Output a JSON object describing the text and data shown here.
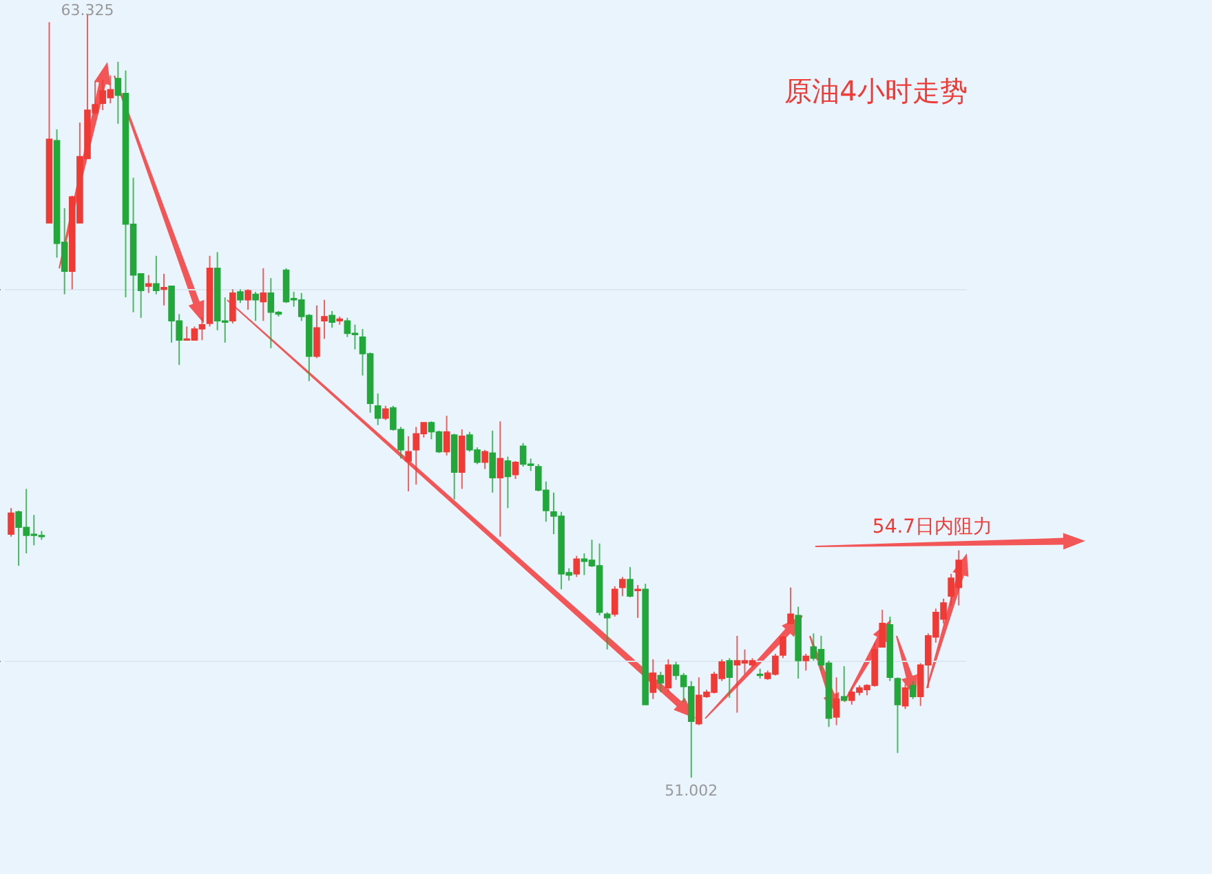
{
  "chart_data": {
    "type": "candlestick",
    "title": "原油4小时走势",
    "categories": [
      null,
      null,
      null,
      null,
      null,
      null,
      null,
      null,
      null,
      null,
      null,
      null,
      null,
      null,
      null,
      null,
      null,
      null,
      null,
      null,
      null,
      null,
      null,
      null,
      null,
      null,
      null,
      null,
      null,
      null,
      null,
      null,
      null,
      null,
      null,
      null,
      null,
      null,
      null,
      null,
      null,
      null,
      null,
      null,
      null,
      null,
      null,
      null,
      null,
      null,
      null,
      null,
      null,
      null,
      null,
      null,
      null,
      null,
      null,
      null,
      null,
      null,
      null,
      null,
      null,
      null,
      null,
      null,
      null,
      null,
      null,
      null,
      null,
      null,
      null,
      null,
      null,
      null,
      null,
      null,
      null,
      null,
      null,
      null,
      null,
      null,
      null,
      null,
      null,
      null,
      null,
      null,
      null,
      null,
      null,
      null,
      null,
      null,
      null,
      null,
      null,
      null,
      null,
      null,
      null,
      null,
      null,
      null,
      null,
      null,
      null,
      null,
      null,
      null,
      null,
      null,
      null,
      null,
      null,
      null,
      null,
      null,
      null,
      null,
      null
    ],
    "ohlc": [
      [
        54.93,
        55.35,
        54.89,
        55.27
      ],
      [
        55.29,
        55.31,
        54.42,
        55.04
      ],
      [
        55.04,
        55.66,
        54.62,
        54.91
      ],
      [
        54.93,
        55.24,
        54.75,
        54.91
      ],
      [
        54.91,
        54.98,
        54.84,
        54.89
      ],
      [
        59.95,
        63.19,
        59.95,
        61.3
      ],
      [
        61.28,
        61.46,
        59.39,
        59.62
      ],
      [
        59.64,
        60.19,
        58.8,
        59.17
      ],
      [
        59.17,
        60.39,
        58.88,
        60.37
      ],
      [
        59.95,
        61.57,
        59.95,
        61.02
      ],
      [
        60.99,
        63.325,
        60.99,
        61.77
      ],
      [
        61.73,
        62.24,
        61.7,
        61.86
      ],
      [
        61.88,
        62.26,
        61.77,
        62.08
      ],
      [
        61.97,
        62.33,
        61.88,
        62.1
      ],
      [
        62.28,
        62.55,
        61.55,
        62.01
      ],
      [
        62.04,
        62.41,
        58.75,
        59.93
      ],
      [
        59.93,
        60.68,
        58.51,
        59.11
      ],
      [
        59.13,
        59.13,
        58.42,
        58.86
      ],
      [
        58.93,
        59.11,
        58.82,
        58.97
      ],
      [
        58.97,
        59.42,
        58.8,
        58.86
      ],
      [
        58.88,
        59.13,
        58.62,
        58.91
      ],
      [
        58.93,
        58.93,
        58.02,
        58.37
      ],
      [
        58.37,
        58.48,
        57.66,
        58.06
      ],
      [
        58.06,
        58.28,
        58.06,
        58.08
      ],
      [
        58.06,
        58.28,
        58.06,
        58.24
      ],
      [
        58.24,
        58.44,
        58.06,
        58.31
      ],
      [
        58.33,
        59.42,
        58.28,
        59.22
      ],
      [
        59.22,
        59.48,
        58.22,
        58.37
      ],
      [
        58.37,
        58.75,
        58.02,
        58.35
      ],
      [
        58.37,
        58.88,
        58.33,
        58.82
      ],
      [
        58.84,
        58.88,
        58.66,
        58.71
      ],
      [
        58.71,
        58.88,
        58.55,
        58.86
      ],
      [
        58.8,
        58.84,
        58.37,
        58.71
      ],
      [
        58.68,
        59.22,
        58.37,
        58.82
      ],
      [
        58.82,
        59.06,
        57.93,
        58.51
      ],
      [
        58.51,
        58.53,
        58.44,
        58.48
      ],
      [
        59.19,
        59.22,
        58.66,
        58.68
      ],
      [
        58.73,
        58.84,
        58.6,
        58.71
      ],
      [
        58.71,
        58.82,
        58.37,
        58.44
      ],
      [
        58.46,
        58.48,
        57.4,
        57.8
      ],
      [
        57.8,
        58.62,
        57.77,
        58.26
      ],
      [
        58.37,
        58.71,
        58.08,
        58.44
      ],
      [
        58.46,
        58.53,
        58.26,
        58.35
      ],
      [
        58.37,
        58.44,
        58.31,
        58.4
      ],
      [
        58.37,
        58.42,
        58.11,
        58.17
      ],
      [
        58.17,
        58.31,
        57.91,
        58.15
      ],
      [
        58.11,
        58.24,
        57.49,
        57.84
      ],
      [
        57.84,
        57.86,
        56.89,
        57.04
      ],
      [
        57.0,
        57.2,
        56.69,
        56.8
      ],
      [
        56.8,
        57.0,
        56.77,
        56.95
      ],
      [
        56.97,
        57.0,
        56.6,
        56.62
      ],
      [
        56.62,
        56.66,
        56.15,
        56.29
      ],
      [
        56.11,
        56.51,
        55.62,
        56.26
      ],
      [
        56.29,
        56.66,
        55.73,
        56.55
      ],
      [
        56.55,
        56.73,
        56.49,
        56.73
      ],
      [
        56.73,
        56.75,
        56.46,
        56.58
      ],
      [
        56.58,
        56.6,
        56.24,
        56.26
      ],
      [
        56.26,
        56.84,
        56.2,
        56.58
      ],
      [
        56.53,
        56.55,
        55.49,
        55.93
      ],
      [
        55.93,
        56.62,
        55.66,
        56.51
      ],
      [
        56.53,
        56.58,
        56.26,
        56.29
      ],
      [
        56.29,
        56.33,
        56.06,
        56.09
      ],
      [
        56.09,
        56.29,
        55.98,
        56.26
      ],
      [
        56.24,
        56.6,
        55.6,
        55.84
      ],
      [
        55.84,
        56.75,
        54.89,
        56.15
      ],
      [
        56.11,
        56.18,
        55.35,
        55.86
      ],
      [
        55.89,
        56.11,
        55.82,
        56.09
      ],
      [
        56.35,
        56.4,
        56.02,
        56.06
      ],
      [
        56.06,
        56.15,
        55.95,
        56.04
      ],
      [
        56.02,
        56.06,
        55.62,
        55.64
      ],
      [
        55.64,
        55.78,
        55.13,
        55.31
      ],
      [
        55.29,
        55.6,
        54.93,
        55.22
      ],
      [
        55.22,
        55.29,
        54.04,
        54.29
      ],
      [
        54.31,
        54.38,
        54.18,
        54.27
      ],
      [
        54.29,
        54.58,
        54.24,
        54.53
      ],
      [
        54.53,
        54.62,
        54.27,
        54.49
      ],
      [
        54.51,
        54.84,
        54.4,
        54.42
      ],
      [
        54.42,
        54.78,
        53.62,
        53.67
      ],
      [
        53.64,
        53.67,
        53.07,
        53.58
      ],
      [
        53.64,
        54.09,
        53.6,
        54.04
      ],
      [
        54.07,
        54.24,
        53.93,
        54.2
      ],
      [
        54.2,
        54.4,
        53.91,
        53.93
      ],
      [
        54.02,
        54.11,
        53.58,
        54.04
      ],
      [
        54.04,
        54.13,
        52.18,
        52.18
      ],
      [
        52.38,
        52.91,
        52.27,
        52.69
      ],
      [
        52.65,
        52.71,
        52.38,
        52.53
      ],
      [
        52.45,
        52.91,
        52.38,
        52.82
      ],
      [
        52.82,
        52.87,
        52.58,
        52.65
      ],
      [
        52.65,
        52.69,
        52.22,
        52.47
      ],
      [
        52.47,
        52.56,
        51.002,
        51.91
      ],
      [
        51.87,
        52.62,
        51.85,
        52.33
      ],
      [
        52.31,
        52.42,
        52.29,
        52.38
      ],
      [
        52.38,
        52.71,
        52.36,
        52.67
      ],
      [
        52.6,
        52.91,
        52.56,
        52.87
      ],
      [
        52.89,
        52.93,
        52.29,
        52.62
      ],
      [
        52.82,
        53.29,
        52.05,
        52.89
      ],
      [
        52.85,
        53.07,
        52.67,
        52.89
      ],
      [
        52.82,
        52.93,
        52.78,
        52.89
      ],
      [
        52.67,
        52.76,
        52.6,
        52.65
      ],
      [
        52.6,
        52.73,
        52.58,
        52.69
      ],
      [
        52.67,
        53.0,
        52.65,
        52.96
      ],
      [
        52.98,
        53.29,
        52.93,
        53.27
      ],
      [
        53.49,
        54.07,
        53.49,
        53.64
      ],
      [
        53.62,
        53.76,
        52.6,
        52.89
      ],
      [
        52.89,
        53.0,
        52.73,
        52.96
      ],
      [
        53.11,
        53.33,
        52.89,
        52.93
      ],
      [
        53.07,
        53.29,
        52.73,
        52.82
      ],
      [
        52.85,
        52.89,
        51.82,
        51.96
      ],
      [
        51.98,
        52.62,
        51.85,
        52.27
      ],
      [
        52.31,
        52.8,
        52.25,
        52.25
      ],
      [
        52.25,
        52.45,
        52.18,
        52.38
      ],
      [
        52.38,
        52.49,
        52.33,
        52.45
      ],
      [
        52.42,
        52.51,
        52.33,
        52.49
      ],
      [
        52.49,
        53.18,
        52.47,
        53.07
      ],
      [
        53.11,
        53.71,
        53.11,
        53.49
      ],
      [
        53.47,
        53.6,
        52.56,
        52.62
      ],
      [
        52.6,
        52.62,
        51.4,
        52.18
      ],
      [
        52.16,
        52.51,
        52.11,
        52.45
      ],
      [
        52.49,
        52.56,
        52.27,
        52.31
      ],
      [
        52.31,
        52.85,
        52.16,
        52.82
      ],
      [
        52.82,
        53.33,
        52.45,
        53.29
      ],
      [
        53.27,
        53.73,
        53.18,
        53.67
      ],
      [
        53.56,
        53.89,
        53.49,
        53.82
      ],
      [
        53.93,
        54.29,
        53.78,
        54.22
      ],
      [
        54.07,
        54.67,
        53.78,
        54.51
      ]
    ],
    "colors": [
      "#f03a35",
      "#22a83a",
      "#22a83a",
      "#22a83a",
      "#22a83a",
      "#f03a35",
      "#22a83a",
      "#22a83a",
      "#f03a35",
      "#f03a35",
      "#f03a35",
      "#f03a35",
      "#f03a35",
      "#f03a35",
      "#22a83a",
      "#22a83a",
      "#22a83a",
      "#22a83a",
      "#f03a35",
      "#22a83a",
      "#f03a35",
      "#22a83a",
      "#22a83a",
      "#f03a35",
      "#f03a35",
      "#f03a35",
      "#f03a35",
      "#22a83a",
      "#22a83a",
      "#f03a35",
      "#22a83a",
      "#f03a35",
      "#22a83a",
      "#f03a35",
      "#22a83a",
      "#22a83a",
      "#22a83a",
      "#22a83a",
      "#22a83a",
      "#22a83a",
      "#f03a35",
      "#f03a35",
      "#22a83a",
      "#f03a35",
      "#22a83a",
      "#22a83a",
      "#22a83a",
      "#22a83a",
      "#22a83a",
      "#f03a35",
      "#22a83a",
      "#22a83a",
      "#f03a35",
      "#f03a35",
      "#f03a35",
      "#22a83a",
      "#22a83a",
      "#f03a35",
      "#22a83a",
      "#f03a35",
      "#22a83a",
      "#22a83a",
      "#f03a35",
      "#22a83a",
      "#f03a35",
      "#22a83a",
      "#f03a35",
      "#22a83a",
      "#22a83a",
      "#22a83a",
      "#22a83a",
      "#22a83a",
      "#22a83a",
      "#22a83a",
      "#f03a35",
      "#22a83a",
      "#22a83a",
      "#22a83a",
      "#22a83a",
      "#f03a35",
      "#f03a35",
      "#22a83a",
      "#f03a35",
      "#22a83a",
      "#f03a35",
      "#22a83a",
      "#f03a35",
      "#22a83a",
      "#22a83a",
      "#22a83a",
      "#f03a35",
      "#f03a35",
      "#f03a35",
      "#f03a35",
      "#22a83a",
      "#f03a35",
      "#f03a35",
      "#f03a35",
      "#22a83a",
      "#f03a35",
      "#f03a35",
      "#f03a35",
      "#f03a35",
      "#22a83a",
      "#f03a35",
      "#22a83a",
      "#22a83a",
      "#22a83a",
      "#f03a35",
      "#22a83a",
      "#f03a35",
      "#f03a35",
      "#f03a35",
      "#f03a35",
      "#f03a35",
      "#22a83a",
      "#22a83a",
      "#f03a35",
      "#22a83a",
      "#f03a35",
      "#f03a35",
      "#f03a35",
      "#f03a35",
      "#f03a35",
      "#f03a35"
    ],
    "yticks": [
      {
        "value": 52.89,
        "label": null
      },
      {
        "value": 58.88,
        "label": null
      }
    ],
    "grid": "y",
    "annotations": [
      {
        "text": "63.325",
        "y": 63.325
      },
      {
        "text": "51.002",
        "y": 51.002
      },
      "54.7日内阻力"
    ]
  }
}
